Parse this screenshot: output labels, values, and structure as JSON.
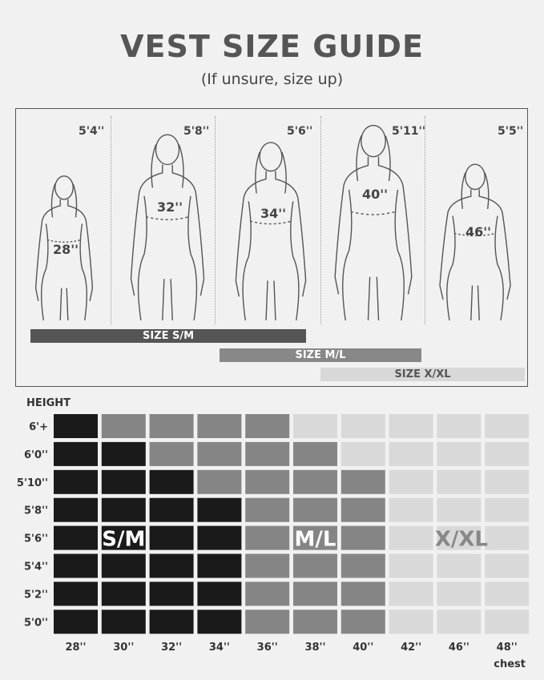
{
  "title": "VEST SIZE GUIDE",
  "subtitle": "(If unsure, size up)",
  "models": [
    {
      "height": "5'4''",
      "chest": "28''"
    },
    {
      "height": "5'8''",
      "chest": "32''"
    },
    {
      "height": "5'6''",
      "chest": "34''"
    },
    {
      "height": "5'11''",
      "chest": "40''"
    },
    {
      "height": "5'5''",
      "chest": "46''"
    }
  ],
  "size_bars": [
    {
      "label": "SIZE S/M",
      "color": "#555555"
    },
    {
      "label": "SIZE M/L",
      "color": "#888888"
    },
    {
      "label": "SIZE X/XL",
      "color": "#d8d8d8"
    }
  ],
  "chart_data": {
    "type": "heatmap",
    "ylabel": "HEIGHT",
    "xlabel": "chest",
    "rows": [
      "6'+",
      "6'0''",
      "5'10''",
      "5'8''",
      "5'6''",
      "5'4''",
      "5'2''",
      "5'0''"
    ],
    "columns": [
      "28''",
      "30''",
      "32''",
      "34''",
      "36''",
      "38''",
      "40''",
      "42''",
      "46''",
      "48''"
    ],
    "sizes": {
      "S": {
        "label": "S/M",
        "color": "#1a1a1a"
      },
      "M": {
        "label": "M/L",
        "color": "#858585"
      },
      "X": {
        "label": "X/XL",
        "color": "#d9d9d9"
      }
    },
    "values": [
      [
        "S",
        "M",
        "M",
        "M",
        "M",
        "X",
        "X",
        "X",
        "X",
        "X"
      ],
      [
        "S",
        "S",
        "M",
        "M",
        "M",
        "M",
        "X",
        "X",
        "X",
        "X"
      ],
      [
        "S",
        "S",
        "S",
        "M",
        "M",
        "M",
        "M",
        "X",
        "X",
        "X"
      ],
      [
        "S",
        "S",
        "S",
        "S",
        "M",
        "M",
        "M",
        "X",
        "X",
        "X"
      ],
      [
        "S",
        "S",
        "S",
        "S",
        "M",
        "M",
        "M",
        "X",
        "X",
        "X"
      ],
      [
        "S",
        "S",
        "S",
        "S",
        "M",
        "M",
        "M",
        "X",
        "X",
        "X"
      ],
      [
        "S",
        "S",
        "S",
        "S",
        "M",
        "M",
        "M",
        "X",
        "X",
        "X"
      ],
      [
        "S",
        "S",
        "S",
        "S",
        "M",
        "M",
        "M",
        "X",
        "X",
        "X"
      ]
    ],
    "region_labels": [
      {
        "text": "S/M",
        "row": 4,
        "col": 1
      },
      {
        "text": "M/L",
        "row": 4,
        "col": 5
      },
      {
        "text": "X/XL",
        "row": 4,
        "col": 8
      }
    ]
  }
}
